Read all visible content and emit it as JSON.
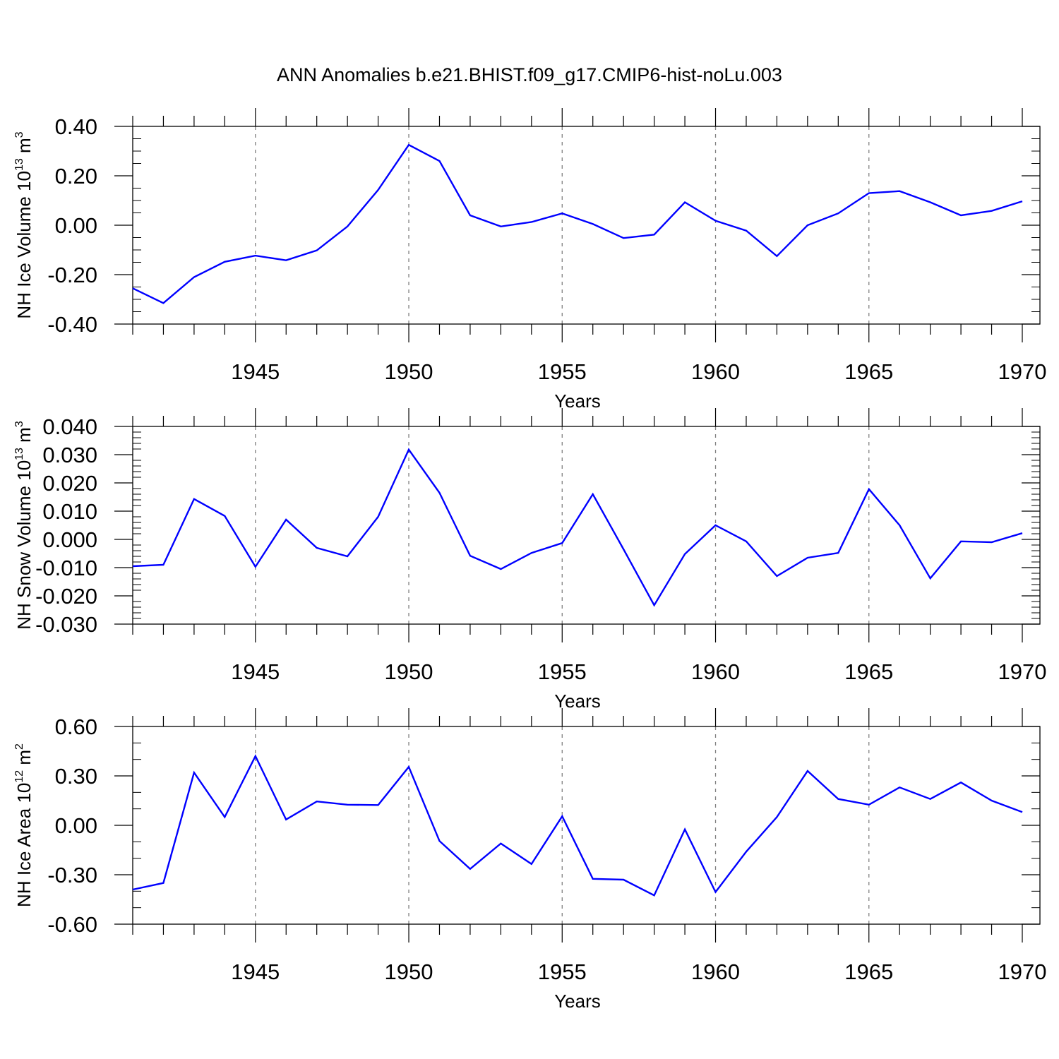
{
  "title": "ANN Anomalies b.e21.BHIST.f09_g17.CMIP6-hist-noLu.003",
  "colors": {
    "line": "#0000ff",
    "axis": "#000000",
    "grid": "#808080"
  },
  "chart_data": [
    {
      "type": "line",
      "ylabel_main": "NH Ice Volume 10",
      "ylabel_exp": "13",
      "ylabel_unit": " m",
      "ylabel_unit_exp": "3",
      "xlabel": "Years",
      "xlim": [
        1941,
        1970
      ],
      "ylim": [
        -0.4,
        0.4
      ],
      "yticks": [
        -0.4,
        -0.2,
        0.0,
        0.2,
        0.4
      ],
      "ytick_labels": [
        "-0.40",
        "-0.20",
        "0.00",
        "0.20",
        "0.40"
      ],
      "y_minor_step": 0.05,
      "xticks": [
        1945,
        1950,
        1955,
        1960,
        1965,
        1970
      ],
      "xtick_labels": [
        "1945",
        "1950",
        "1955",
        "1960",
        "1965",
        "1970"
      ],
      "x_grid_years": [
        1945,
        1950,
        1955,
        1960,
        1965
      ],
      "series": [
        {
          "name": "NH Ice Volume",
          "x": [
            1941,
            1942,
            1943,
            1944,
            1945,
            1946,
            1947,
            1948,
            1949,
            1950,
            1951,
            1952,
            1953,
            1954,
            1955,
            1956,
            1957,
            1958,
            1959,
            1960,
            1961,
            1962,
            1963,
            1964,
            1965,
            1966,
            1967,
            1968,
            1969,
            1970
          ],
          "values": [
            -0.255,
            -0.315,
            -0.21,
            -0.148,
            -0.123,
            -0.142,
            -0.102,
            -0.005,
            0.143,
            0.325,
            0.26,
            0.04,
            -0.005,
            0.013,
            0.048,
            0.005,
            -0.052,
            -0.038,
            0.093,
            0.018,
            -0.022,
            -0.125,
            0.0,
            0.048,
            0.13,
            0.138,
            0.093,
            0.04,
            0.058,
            0.097
          ]
        }
      ]
    },
    {
      "type": "line",
      "ylabel_main": "NH Snow Volume 10",
      "ylabel_exp": "13",
      "ylabel_unit": " m",
      "ylabel_unit_exp": "3",
      "xlabel": "Years",
      "xlim": [
        1941,
        1970
      ],
      "ylim": [
        -0.03,
        0.04
      ],
      "yticks": [
        -0.03,
        -0.02,
        -0.01,
        0.0,
        0.01,
        0.02,
        0.03,
        0.04
      ],
      "ytick_labels": [
        "-0.030",
        "-0.020",
        "-0.010",
        "0.000",
        "0.010",
        "0.020",
        "0.030",
        "0.040"
      ],
      "y_minor_step": 0.002,
      "xticks": [
        1945,
        1950,
        1955,
        1960,
        1965,
        1970
      ],
      "xtick_labels": [
        "1945",
        "1950",
        "1955",
        "1960",
        "1965",
        "1970"
      ],
      "x_grid_years": [
        1945,
        1950,
        1955,
        1960,
        1965
      ],
      "series": [
        {
          "name": "NH Snow Volume",
          "x": [
            1941,
            1942,
            1943,
            1944,
            1945,
            1946,
            1947,
            1948,
            1949,
            1950,
            1951,
            1952,
            1953,
            1954,
            1955,
            1956,
            1957,
            1958,
            1959,
            1960,
            1961,
            1962,
            1963,
            1964,
            1965,
            1966,
            1967,
            1968,
            1969,
            1970
          ],
          "values": [
            -0.0095,
            -0.009,
            0.0143,
            0.0083,
            -0.0097,
            0.007,
            -0.003,
            -0.006,
            0.008,
            0.0318,
            0.0165,
            -0.0058,
            -0.0105,
            -0.0048,
            -0.0013,
            0.016,
            -0.0035,
            -0.0233,
            -0.0052,
            0.005,
            -0.0007,
            -0.013,
            -0.0065,
            -0.0048,
            0.0178,
            0.005,
            -0.0138,
            -0.0007,
            -0.001,
            0.0022
          ]
        }
      ]
    },
    {
      "type": "line",
      "ylabel_main": "NH Ice Area 10",
      "ylabel_exp": "12",
      "ylabel_unit": " m",
      "ylabel_unit_exp": "2",
      "xlabel": "Years",
      "xlim": [
        1941,
        1970
      ],
      "ylim": [
        -0.6,
        0.6
      ],
      "yticks": [
        -0.6,
        -0.3,
        0.0,
        0.3,
        0.6
      ],
      "ytick_labels": [
        "-0.60",
        "-0.30",
        "0.00",
        "0.30",
        "0.60"
      ],
      "y_minor_step": 0.1,
      "xticks": [
        1945,
        1950,
        1955,
        1960,
        1965,
        1970
      ],
      "xtick_labels": [
        "1945",
        "1950",
        "1955",
        "1960",
        "1965",
        "1970"
      ],
      "x_grid_years": [
        1945,
        1950,
        1955,
        1960,
        1965
      ],
      "series": [
        {
          "name": "NH Ice Area",
          "x": [
            1941,
            1942,
            1943,
            1944,
            1945,
            1946,
            1947,
            1948,
            1949,
            1950,
            1951,
            1952,
            1953,
            1954,
            1955,
            1956,
            1957,
            1958,
            1959,
            1960,
            1961,
            1962,
            1963,
            1964,
            1965,
            1966,
            1967,
            1968,
            1969,
            1970
          ],
          "values": [
            -0.39,
            -0.35,
            0.32,
            0.05,
            0.42,
            0.035,
            0.145,
            0.125,
            0.123,
            0.355,
            -0.095,
            -0.265,
            -0.11,
            -0.235,
            0.055,
            -0.325,
            -0.33,
            -0.425,
            -0.025,
            -0.405,
            -0.16,
            0.05,
            0.33,
            0.16,
            0.125,
            0.23,
            0.16,
            0.26,
            0.15,
            0.08
          ]
        }
      ]
    }
  ]
}
